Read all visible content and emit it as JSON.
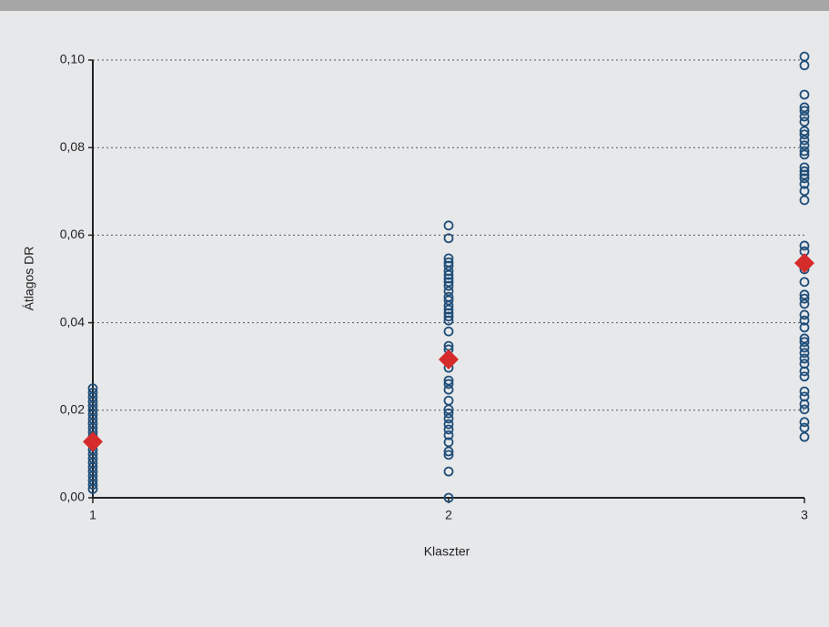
{
  "chart_data": {
    "type": "scatter",
    "xlabel": "Klaszter",
    "ylabel": "Átlagos DR",
    "xlim": [
      1,
      3
    ],
    "xticks": [
      1,
      2,
      3
    ],
    "ylim": [
      0,
      0.1
    ],
    "yticks": [
      {
        "value": 0,
        "label": "0,00"
      },
      {
        "value": 0.02,
        "label": "0,02"
      },
      {
        "value": 0.04,
        "label": "0,04"
      },
      {
        "value": 0.06,
        "label": "0,06"
      },
      {
        "value": 0.08,
        "label": "0,08"
      },
      {
        "value": 0.1,
        "label": "0,10"
      }
    ],
    "grid": true,
    "series": [
      {
        "marker": "circle",
        "color": "#1f4e79",
        "x": [
          1,
          1,
          1,
          1,
          1,
          1,
          1,
          1,
          1,
          1,
          1,
          1,
          1,
          1,
          1,
          1,
          1,
          1,
          1,
          1,
          1,
          1,
          1,
          1
        ],
        "values": [
          0.025,
          0.024,
          0.023,
          0.022,
          0.021,
          0.02,
          0.019,
          0.018,
          0.017,
          0.016,
          0.015,
          0.014,
          0.013,
          0.012,
          0.011,
          0.01,
          0.009,
          0.008,
          0.007,
          0.006,
          0.005,
          0.004,
          0.003,
          0.002
        ]
      },
      {
        "marker": "circle",
        "color": "#1f4e79",
        "x": [
          2,
          2,
          2,
          2,
          2,
          2,
          2,
          2,
          2,
          2,
          2,
          2,
          2,
          2,
          2,
          2,
          2,
          2,
          2,
          2,
          2,
          2,
          2,
          2,
          2,
          2,
          2,
          2,
          2,
          2,
          2,
          2,
          2,
          2,
          2,
          2,
          2,
          2,
          2
        ],
        "values": [
          0.0622,
          0.0593,
          0.0547,
          0.0538,
          0.053,
          0.0518,
          0.0509,
          0.0501,
          0.0493,
          0.0484,
          0.0472,
          0.0459,
          0.0451,
          0.0439,
          0.043,
          0.0422,
          0.0414,
          0.0405,
          0.038,
          0.0347,
          0.0339,
          0.0322,
          0.031,
          0.0297,
          0.0268,
          0.026,
          0.0247,
          0.0222,
          0.0202,
          0.0193,
          0.0181,
          0.0168,
          0.0156,
          0.0143,
          0.0127,
          0.0106,
          0.0098,
          0.006,
          0
        ]
      },
      {
        "marker": "circle",
        "color": "#1f4e79",
        "x": [
          3,
          3,
          3,
          3,
          3,
          3,
          3,
          3,
          3,
          3,
          3,
          3,
          3,
          3,
          3,
          3,
          3,
          3,
          3,
          3,
          3,
          3,
          3,
          3,
          3,
          3,
          3,
          3,
          3,
          3,
          3,
          3,
          3,
          3,
          3,
          3,
          3,
          3,
          3,
          3,
          3,
          3,
          3,
          3,
          3
        ],
        "values": [
          0.1008,
          0.0988,
          0.0921,
          0.0892,
          0.0884,
          0.0871,
          0.0859,
          0.0838,
          0.083,
          0.0817,
          0.0805,
          0.0792,
          0.0784,
          0.0755,
          0.0746,
          0.0738,
          0.073,
          0.0717,
          0.0701,
          0.068,
          0.0576,
          0.0563,
          0.0522,
          0.0493,
          0.0464,
          0.0455,
          0.0443,
          0.0418,
          0.0405,
          0.0389,
          0.0364,
          0.0356,
          0.0343,
          0.0331,
          0.0318,
          0.0306,
          0.0289,
          0.0277,
          0.0243,
          0.0231,
          0.0214,
          0.0202,
          0.0173,
          0.016,
          0.0139
        ]
      },
      {
        "marker": "diamond",
        "color": "#d62b2b",
        "x": [
          1,
          2,
          3
        ],
        "values": [
          0.0128,
          0.0316,
          0.0536
        ]
      }
    ]
  }
}
